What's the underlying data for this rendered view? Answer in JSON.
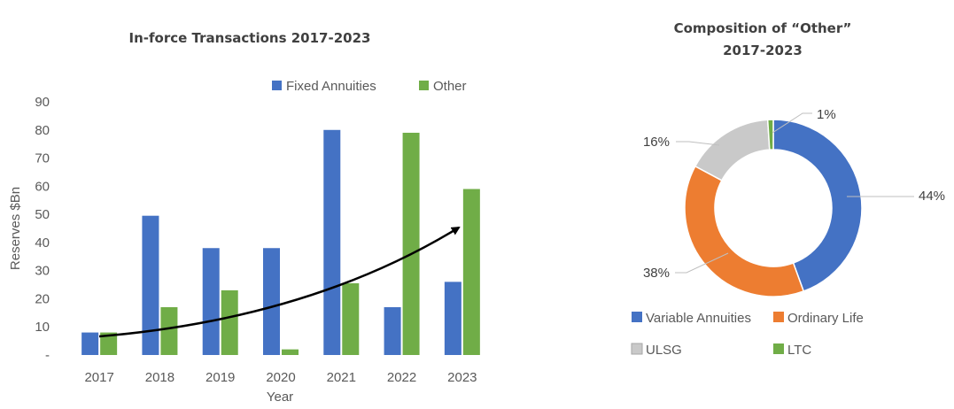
{
  "chart_data": [
    {
      "type": "bar",
      "title": "In-force Transactions 2017-2023",
      "xlabel": "Year",
      "ylabel": "Reserves $Bn",
      "ylim": [
        0,
        90
      ],
      "yticks": [
        "-",
        "10",
        "20",
        "30",
        "40",
        "50",
        "60",
        "70",
        "80",
        "90"
      ],
      "categories": [
        "2017",
        "2018",
        "2019",
        "2020",
        "2021",
        "2022",
        "2023"
      ],
      "series": [
        {
          "name": "Fixed Annuities",
          "color": "#4472C4",
          "values": [
            8,
            49.5,
            38,
            38,
            80,
            17,
            26
          ]
        },
        {
          "name": "Other",
          "color": "#70AD47",
          "values": [
            8,
            17,
            23,
            2,
            25.5,
            79,
            59
          ]
        }
      ],
      "legend": "top-right",
      "annotation": "curved arrow showing upward trend",
      "grid": false
    },
    {
      "type": "pie",
      "title_lines": [
        "Composition of “Other”",
        "2017-2023"
      ],
      "donut": true,
      "slices": [
        {
          "label": "Variable Annuities",
          "value": 44,
          "pct_label": "44%",
          "color": "#4472C4"
        },
        {
          "label": "Ordinary Life",
          "value": 38,
          "pct_label": "38%",
          "color": "#ED7D31"
        },
        {
          "label": "ULSG",
          "value": 16,
          "pct_label": "16%",
          "color": "#C9C9C9"
        },
        {
          "label": "LTC",
          "value": 1,
          "pct_label": "1%",
          "color": "#70AD47"
        }
      ],
      "legend": "bottom"
    }
  ]
}
